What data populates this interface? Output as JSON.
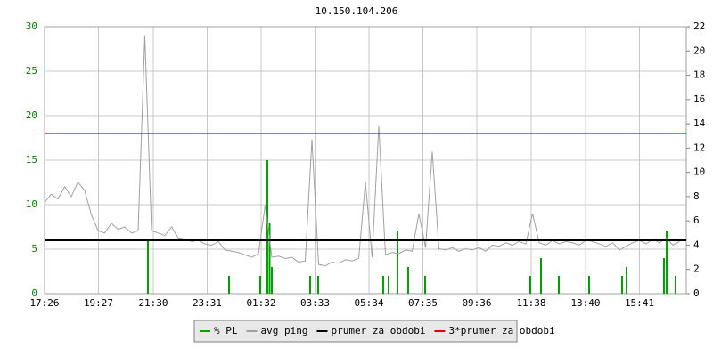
{
  "chart_data": {
    "type": "line",
    "title": "10.150.104.206",
    "xlim": [
      0,
      1440
    ],
    "xticks": [
      {
        "value": 0,
        "label": "17:26"
      },
      {
        "value": 121,
        "label": "19:27"
      },
      {
        "value": 244,
        "label": "21:30"
      },
      {
        "value": 365,
        "label": "23:31"
      },
      {
        "value": 486,
        "label": "01:32"
      },
      {
        "value": 607,
        "label": "03:33"
      },
      {
        "value": 728,
        "label": "05:34"
      },
      {
        "value": 849,
        "label": "07:35"
      },
      {
        "value": 970,
        "label": "09:36"
      },
      {
        "value": 1092,
        "label": "11:38"
      },
      {
        "value": 1214,
        "label": "13:40"
      },
      {
        "value": 1335,
        "label": "15:41"
      }
    ],
    "ylim": [
      0,
      30
    ],
    "yticks": [
      0,
      5,
      10,
      15,
      20,
      25,
      30
    ],
    "y2lim": [
      0,
      22
    ],
    "y2ticks": [
      0,
      2,
      4,
      6,
      8,
      10,
      12,
      14,
      16,
      18,
      20,
      22
    ],
    "grid": true,
    "legend": "bottom",
    "series": [
      {
        "name": "% PL",
        "color": "#00a000",
        "kind": "bar",
        "x": [
          232,
          414,
          484,
          500,
          505,
          510,
          596,
          614,
          760,
          772,
          792,
          816,
          854,
          1090,
          1114,
          1154,
          1222,
          1296,
          1306,
          1390,
          1396,
          1416
        ],
        "values": [
          6,
          2,
          2,
          15,
          8,
          3,
          2,
          2,
          2,
          2,
          7,
          3,
          2,
          2,
          4,
          2,
          2,
          2,
          3,
          4,
          7,
          2
        ]
      },
      {
        "name": "avg ping",
        "color": "#a0a0a0",
        "kind": "line",
        "axis": "y2",
        "x": [
          0,
          15,
          30,
          45,
          60,
          75,
          90,
          105,
          120,
          135,
          150,
          165,
          180,
          195,
          210,
          225,
          240,
          255,
          270,
          285,
          300,
          315,
          330,
          345,
          360,
          375,
          390,
          405,
          420,
          435,
          450,
          465,
          480,
          495,
          510,
          525,
          540,
          555,
          570,
          585,
          600,
          615,
          630,
          645,
          660,
          675,
          690,
          705,
          720,
          735,
          750,
          765,
          780,
          795,
          810,
          825,
          840,
          855,
          870,
          885,
          900,
          915,
          930,
          945,
          960,
          975,
          990,
          1005,
          1020,
          1035,
          1050,
          1065,
          1080,
          1095,
          1110,
          1125,
          1140,
          1155,
          1170,
          1185,
          1200,
          1215,
          1230,
          1245,
          1260,
          1275,
          1290,
          1305,
          1320,
          1335,
          1350,
          1365,
          1380,
          1395,
          1410,
          1425
        ],
        "values": [
          7.5,
          8.2,
          7.8,
          8.8,
          8.0,
          9.2,
          8.5,
          6.5,
          5.2,
          5.0,
          5.8,
          5.3,
          5.5,
          5.0,
          5.2,
          21.3,
          5.2,
          5.0,
          4.8,
          5.5,
          4.6,
          4.5,
          4.3,
          4.4,
          4.1,
          4.0,
          4.3,
          3.6,
          3.5,
          3.4,
          3.2,
          3.0,
          3.3,
          7.3,
          3.0,
          3.1,
          2.9,
          3.0,
          2.6,
          2.7,
          12.7,
          2.4,
          2.3,
          2.6,
          2.5,
          2.8,
          2.7,
          2.9,
          9.2,
          3.0,
          13.8,
          3.2,
          3.4,
          3.3,
          3.6,
          3.5,
          6.6,
          3.8,
          11.7,
          3.7,
          3.6,
          3.8,
          3.5,
          3.7,
          3.6,
          3.8,
          3.5,
          4.0,
          3.9,
          4.2,
          4.0,
          4.3,
          4.1,
          6.6,
          4.2,
          4.0,
          4.4,
          4.1,
          4.3,
          4.2,
          4.0,
          4.4,
          4.3,
          4.1,
          3.9,
          4.2,
          3.6,
          3.9,
          4.2,
          4.4,
          4.1,
          4.5,
          4.2,
          4.6,
          4.0,
          4.3
        ]
      },
      {
        "name": "prumer za obdobi",
        "color": "#000000",
        "kind": "hline",
        "value": 6
      },
      {
        "name": "3*prumer za obdobi",
        "color": "#e00000",
        "kind": "hline",
        "value": 18
      }
    ]
  }
}
